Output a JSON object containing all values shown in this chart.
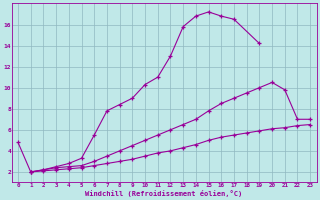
{
  "bg_color": "#c0e8e8",
  "grid_color": "#90b8c0",
  "line_color": "#990099",
  "xlabel": "Windchill (Refroidissement éolien,°C)",
  "xlim": [
    -0.5,
    23.5
  ],
  "ylim": [
    1.0,
    18.0
  ],
  "yticks": [
    2,
    4,
    6,
    8,
    10,
    12,
    14,
    16
  ],
  "xticks": [
    0,
    1,
    2,
    3,
    4,
    5,
    6,
    7,
    8,
    9,
    10,
    11,
    12,
    13,
    14,
    15,
    16,
    17,
    18,
    19,
    20,
    21,
    22,
    23
  ],
  "curve1_x": [
    0,
    1,
    2,
    3,
    4,
    5,
    6,
    7,
    8,
    9,
    10,
    11,
    12,
    13,
    14,
    15,
    16,
    17,
    19
  ],
  "curve1_y": [
    4.8,
    2.0,
    2.2,
    2.5,
    2.8,
    3.3,
    5.5,
    7.8,
    8.4,
    9.0,
    10.3,
    11.0,
    13.0,
    15.8,
    16.8,
    17.2,
    16.8,
    16.5,
    14.2
  ],
  "curve2_x": [
    1,
    2,
    3,
    4,
    5,
    6,
    7,
    8,
    9,
    10,
    11,
    12,
    13,
    14,
    15,
    16,
    17,
    18,
    19,
    20,
    21,
    22,
    23
  ],
  "curve2_y": [
    2.0,
    2.2,
    2.4,
    2.5,
    2.6,
    3.0,
    3.5,
    4.0,
    4.5,
    5.0,
    5.5,
    6.0,
    6.5,
    7.0,
    7.8,
    8.5,
    9.0,
    9.5,
    10.0,
    10.5,
    9.8,
    7.0,
    7.0
  ],
  "curve3_x": [
    1,
    2,
    3,
    4,
    5,
    6,
    7,
    8,
    9,
    10,
    11,
    12,
    13,
    14,
    15,
    16,
    17,
    18,
    19,
    20,
    21,
    22,
    23
  ],
  "curve3_y": [
    2.0,
    2.1,
    2.2,
    2.3,
    2.4,
    2.6,
    2.8,
    3.0,
    3.2,
    3.5,
    3.8,
    4.0,
    4.3,
    4.6,
    5.0,
    5.3,
    5.5,
    5.7,
    5.9,
    6.1,
    6.2,
    6.4,
    6.5
  ]
}
